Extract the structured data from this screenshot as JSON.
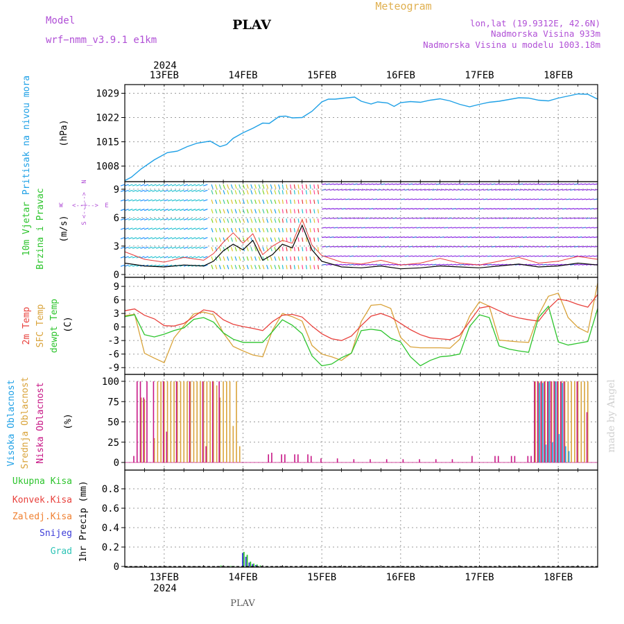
{
  "header": {
    "model_label": "Model",
    "model_name": "wrf−nmm_v3.9.1  e1km",
    "station": "PLAV",
    "product": "Meteogram",
    "coords": "lon,lat (19.9312E, 42.6N)",
    "elevation": "Nadmorska Visina 933m",
    "model_elevation": "Nadmorska Visina u modelu 1003.18m",
    "footer_station": "PLAV",
    "watermark": "made by Angel"
  },
  "time_axis": {
    "year": "2024",
    "days": [
      "13FEB",
      "14FEB",
      "15FEB",
      "16FEB",
      "17FEB",
      "18FEB"
    ],
    "start_hour": 0,
    "end_hour": 144
  },
  "colors": {
    "pressure": "#1ea0e6",
    "t2m": "#e8413c",
    "tsfc": "#d9a33a",
    "dewpt": "#2cc42c",
    "high_cloud": "#1ea0e6",
    "mid_cloud": "#d9a33a",
    "low_cloud": "#c71585",
    "total_precip": "#2cc42c",
    "conv_precip": "#e8413c",
    "frz_precip": "#f08030",
    "snow": "#3c3cd8",
    "graupel": "#2ec4b6",
    "wind_speed": "#000000",
    "gust": "#e83a3a",
    "purple_text": "#b04fd6",
    "orange_text": "#e0b050"
  },
  "panels": {
    "pressure": {
      "ylabel_name": "Pritisak na nivou mora",
      "ylabel_unit": "(hPa)",
      "ticks": [
        "1008",
        "1015",
        "1022",
        "1029"
      ]
    },
    "wind": {
      "ylabel_name1": "10m Vjetar",
      "ylabel_name2": "Brzina i Pravac",
      "ylabel_unit": "(m/s)",
      "ticks": [
        "0",
        "3",
        "6",
        "9"
      ],
      "compass_n": "N",
      "compass_s": "S",
      "compass_w": "W",
      "compass_e": "E",
      "compass_glyph": "<--|-->"
    },
    "temp": {
      "ylabel_name1": "2m Temp",
      "ylabel_name2": "SFC Temp",
      "ylabel_name3": "dewpt Temp",
      "ylabel_unit": "(C)",
      "ticks": [
        "-9",
        "-6",
        "-3",
        "0",
        "3",
        "6",
        "9"
      ]
    },
    "cloud": {
      "ylabel_name1": "Visoka Oblacnost",
      "ylabel_name2": "Srednja Oblacnost",
      "ylabel_name3": "Niska Oblacnost",
      "ylabel_unit": "(%)",
      "ticks": [
        "0",
        "25",
        "50",
        "75",
        "100"
      ]
    },
    "precip": {
      "ylabel_unit": "1hr Precip (mm)",
      "legend": [
        "Ukupna Kisa",
        "Konvek.Kisa",
        "Zaledj.Kisa",
        "Snijeg",
        "Grad"
      ],
      "ticks": [
        "0",
        "0.2",
        "0.4",
        "0.6",
        "0.8"
      ]
    }
  },
  "chart_data": [
    {
      "type": "line",
      "title": "",
      "ylabel": "Pritisak na nivou mora (hPa)",
      "ylim": [
        1003.5,
        1031.5
      ],
      "x_hours": [
        0,
        2,
        5,
        9,
        13,
        16,
        19,
        22,
        26,
        29,
        31,
        33,
        36,
        39,
        42,
        44,
        47,
        49,
        51,
        54,
        57,
        60,
        62,
        64,
        67,
        70,
        72,
        75,
        77,
        80,
        82,
        84,
        87,
        90,
        93,
        96,
        99,
        102,
        105,
        108,
        111,
        114,
        117,
        120,
        123,
        126,
        129,
        132,
        135,
        138,
        141,
        144
      ],
      "series": [
        {
          "values": [
            1003.8,
            1004.8,
            1007.2,
            1009.8,
            1011.9,
            1012.3,
            1013.6,
            1014.6,
            1015.2,
            1013.6,
            1014.2,
            1016.0,
            1017.6,
            1018.9,
            1020.4,
            1020.3,
            1022.3,
            1022.4,
            1021.9,
            1022.0,
            1023.8,
            1026.5,
            1027.3,
            1027.3,
            1027.6,
            1027.9,
            1026.7,
            1025.9,
            1026.5,
            1026.2,
            1025.2,
            1026.3,
            1026.6,
            1026.4,
            1027.0,
            1027.4,
            1026.8,
            1025.8,
            1025.1,
            1025.8,
            1026.4,
            1026.7,
            1027.2,
            1027.7,
            1027.6,
            1027.0,
            1026.8,
            1027.6,
            1028.2,
            1028.8,
            1028.7,
            1027.3
          ]
        }
      ]
    },
    {
      "type": "line",
      "title": "",
      "ylabel": "10m Vjetar Brzina i Pravac (m/s)",
      "ylim": [
        -0.3,
        9.8
      ],
      "x_hours": [
        0,
        6,
        12,
        18,
        24,
        27,
        30,
        33,
        36,
        39,
        42,
        45,
        48,
        51,
        54,
        57,
        60,
        66,
        72,
        78,
        84,
        90,
        96,
        102,
        108,
        114,
        120,
        126,
        132,
        138,
        144
      ],
      "series": [
        {
          "name": "wind_speed",
          "values": [
            1.2,
            0.9,
            0.8,
            1.0,
            0.9,
            1.4,
            2.5,
            3.2,
            2.6,
            3.6,
            1.5,
            2.1,
            3.2,
            2.8,
            5.2,
            2.6,
            1.4,
            0.8,
            0.7,
            0.9,
            0.6,
            0.7,
            0.9,
            0.8,
            0.7,
            0.9,
            1.1,
            0.8,
            0.9,
            1.2,
            1.0
          ]
        },
        {
          "name": "gust",
          "values": [
            2.4,
            1.6,
            1.3,
            1.8,
            1.5,
            2.2,
            3.4,
            4.4,
            3.3,
            4.3,
            2.1,
            3.0,
            3.6,
            3.3,
            5.8,
            3.1,
            2.0,
            1.3,
            1.1,
            1.5,
            1.0,
            1.2,
            1.7,
            1.2,
            1.0,
            1.4,
            1.8,
            1.2,
            1.4,
            1.9,
            1.6
          ]
        }
      ],
      "streamline_levels": [
        1.0,
        1.9,
        2.9,
        3.9,
        4.9,
        5.9,
        6.9,
        7.9,
        8.9,
        9.5
      ],
      "wind_direction_sectors": [
        {
          "from_hour": 0,
          "to_hour": 26,
          "direction": "west_cyan"
        },
        {
          "from_hour": 26,
          "to_hour": 48,
          "direction": "north_green_yellow"
        },
        {
          "from_hour": 48,
          "to_hour": 60,
          "direction": "north_red"
        },
        {
          "from_hour": 60,
          "to_hour": 144,
          "direction": "east_purple"
        }
      ]
    },
    {
      "type": "line",
      "title": "",
      "ylabel": "Temp (C)",
      "ylim": [
        -10.5,
        11
      ],
      "x_hours": [
        0,
        3,
        6,
        9,
        12,
        15,
        18,
        21,
        24,
        27,
        30,
        33,
        36,
        39,
        42,
        45,
        48,
        51,
        54,
        57,
        60,
        63,
        66,
        69,
        72,
        75,
        78,
        81,
        84,
        87,
        90,
        93,
        96,
        99,
        102,
        105,
        108,
        111,
        114,
        117,
        120,
        123,
        126,
        129,
        132,
        135,
        138,
        141,
        144
      ],
      "series": [
        {
          "name": "t2m",
          "values": [
            3.6,
            4.0,
            2.6,
            1.8,
            0.3,
            0.2,
            0.8,
            2.3,
            3.8,
            3.4,
            1.6,
            0.6,
            0.1,
            -0.3,
            -0.8,
            1.2,
            2.6,
            2.8,
            2.2,
            0.2,
            -1.5,
            -2.6,
            -3.0,
            -2.0,
            0.3,
            2.4,
            3.0,
            2.2,
            0.8,
            -0.6,
            -1.7,
            -2.4,
            -2.6,
            -2.8,
            -1.8,
            1.2,
            4.2,
            4.6,
            3.6,
            2.6,
            2.0,
            1.6,
            1.3,
            4.1,
            6.2,
            5.8,
            5.0,
            4.4,
            7.2
          ]
        },
        {
          "name": "tsfc",
          "values": [
            2.5,
            2.8,
            -5.8,
            -6.9,
            -7.9,
            -2.4,
            0.3,
            2.9,
            3.3,
            2.7,
            -1.3,
            -4.3,
            -5.3,
            -6.2,
            -6.6,
            -0.7,
            3.0,
            2.3,
            1.3,
            -4.1,
            -6.0,
            -6.6,
            -7.4,
            -5.8,
            1.2,
            4.8,
            5.0,
            4.1,
            -2.3,
            -4.4,
            -4.6,
            -4.6,
            -4.6,
            -4.7,
            -2.7,
            2.4,
            5.6,
            4.6,
            -2.9,
            -3.1,
            -3.3,
            -3.4,
            2.7,
            6.8,
            7.5,
            2.1,
            -0.1,
            -1.2,
            9.7
          ]
        },
        {
          "name": "dewpt",
          "values": [
            2.3,
            2.7,
            -1.7,
            -2.2,
            -1.6,
            -0.8,
            -0.2,
            1.7,
            2.1,
            1.1,
            -1.3,
            -2.7,
            -3.4,
            -3.4,
            -3.4,
            -1.0,
            1.6,
            0.4,
            -1.5,
            -6.4,
            -8.6,
            -8.2,
            -6.8,
            -5.8,
            -0.8,
            -0.5,
            -0.8,
            -2.5,
            -3.3,
            -6.6,
            -8.6,
            -7.4,
            -6.6,
            -6.4,
            -6.0,
            0.1,
            2.7,
            2.1,
            -4.2,
            -4.9,
            -5.3,
            -5.6,
            2.1,
            4.6,
            -3.3,
            -4.0,
            -3.6,
            -3.2,
            4.1
          ]
        }
      ]
    },
    {
      "type": "bar",
      "title": "",
      "ylabel": "Oblacnost (%)",
      "ylim": [
        0,
        100
      ],
      "series": [
        {
          "name": "high_cloud",
          "points": [
            [
              126,
              98
            ],
            [
              127,
              98
            ],
            [
              128,
              22
            ],
            [
              129,
              100
            ],
            [
              130,
              25
            ],
            [
              131,
              100
            ],
            [
              132,
              35
            ],
            [
              133,
              98
            ],
            [
              134,
              20
            ],
            [
              135,
              14
            ]
          ]
        },
        {
          "name": "mid_cloud",
          "points": [
            [
              5,
              80
            ],
            [
              6,
              78
            ],
            [
              9,
              30
            ],
            [
              10,
              100
            ],
            [
              11,
              100
            ],
            [
              12,
              100
            ],
            [
              13,
              100
            ],
            [
              14,
              100
            ],
            [
              15,
              100
            ],
            [
              16,
              100
            ],
            [
              17,
              100
            ],
            [
              18,
              100
            ],
            [
              19,
              100
            ],
            [
              20,
              100
            ],
            [
              21,
              100
            ],
            [
              22,
              100
            ],
            [
              23,
              100
            ],
            [
              24,
              100
            ],
            [
              25,
              100
            ],
            [
              26,
              100
            ],
            [
              27,
              100
            ],
            [
              28,
              95
            ],
            [
              29,
              80
            ],
            [
              30,
              100
            ],
            [
              31,
              100
            ],
            [
              32,
              100
            ],
            [
              33,
              45
            ],
            [
              34,
              100
            ],
            [
              35,
              20
            ],
            [
              125,
              100
            ],
            [
              126,
              100
            ],
            [
              127,
              100
            ],
            [
              128,
              100
            ],
            [
              129,
              100
            ],
            [
              130,
              100
            ],
            [
              131,
              100
            ],
            [
              132,
              100
            ],
            [
              133,
              100
            ],
            [
              134,
              100
            ],
            [
              135,
              100
            ],
            [
              136,
              100
            ],
            [
              137,
              100
            ],
            [
              138,
              100
            ],
            [
              139,
              100
            ],
            [
              140,
              100
            ],
            [
              141,
              100
            ]
          ]
        },
        {
          "name": "low_cloud",
          "points": [
            [
              3,
              8
            ],
            [
              4,
              100
            ],
            [
              5,
              100
            ],
            [
              6,
              80
            ],
            [
              7,
              100
            ],
            [
              9,
              100
            ],
            [
              12,
              100
            ],
            [
              13,
              38
            ],
            [
              16,
              100
            ],
            [
              20,
              100
            ],
            [
              24,
              100
            ],
            [
              25,
              20
            ],
            [
              27,
              100
            ],
            [
              29,
              100
            ],
            [
              44,
              10
            ],
            [
              45,
              12
            ],
            [
              48,
              10
            ],
            [
              49,
              10
            ],
            [
              52,
              10
            ],
            [
              53,
              10
            ],
            [
              56,
              10
            ],
            [
              57,
              8
            ],
            [
              60,
              5
            ],
            [
              65,
              5
            ],
            [
              70,
              4
            ],
            [
              75,
              4
            ],
            [
              80,
              4
            ],
            [
              85,
              4
            ],
            [
              90,
              4
            ],
            [
              95,
              4
            ],
            [
              100,
              4
            ],
            [
              106,
              8
            ],
            [
              113,
              8
            ],
            [
              114,
              8
            ],
            [
              118,
              8
            ],
            [
              119,
              8
            ],
            [
              123,
              8
            ],
            [
              124,
              8
            ],
            [
              125,
              100
            ],
            [
              126,
              100
            ],
            [
              127,
              100
            ],
            [
              128,
              100
            ],
            [
              129,
              100
            ],
            [
              130,
              100
            ],
            [
              131,
              100
            ],
            [
              132,
              100
            ],
            [
              133,
              100
            ],
            [
              134,
              100
            ],
            [
              138,
              100
            ],
            [
              141,
              62
            ]
          ]
        }
      ]
    },
    {
      "type": "bar",
      "title": "",
      "ylabel": "1hr Precip (mm)",
      "ylim": [
        0,
        1.0
      ],
      "series": [
        {
          "name": "total_precip",
          "points": [
            [
              29,
              0.01
            ],
            [
              32,
              0.005
            ],
            [
              33,
              0.005
            ],
            [
              36,
              0.15
            ],
            [
              37,
              0.12
            ],
            [
              38,
              0.05
            ],
            [
              39,
              0.03
            ],
            [
              40,
              0.02
            ],
            [
              41,
              0.01
            ]
          ]
        },
        {
          "name": "snow",
          "points": [
            [
              36,
              0.14
            ],
            [
              37,
              0.1
            ],
            [
              38,
              0.04
            ],
            [
              39,
              0.025
            ],
            [
              40,
              0.015
            ]
          ]
        }
      ]
    }
  ]
}
